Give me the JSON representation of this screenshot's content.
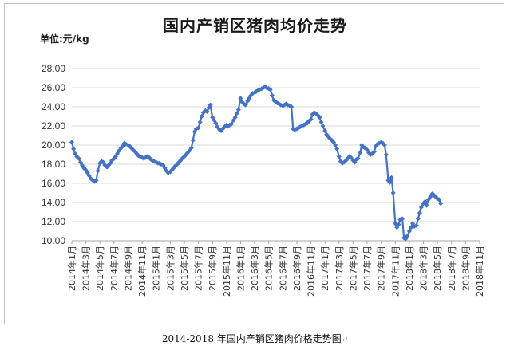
{
  "title": "国内产销区猪肉均价走势",
  "unit_label": "单位:元/kg",
  "caption": "2014-2018 年国内产销区猪肉价格走势图",
  "caption_mark": "↵",
  "chart_data": {
    "type": "line",
    "title": "国内产销区猪肉均价走势",
    "ylabel": "单位:元/kg",
    "xlabel": "",
    "ylim": [
      10,
      28
    ],
    "y_ticks": [
      "10.00",
      "12.00",
      "14.00",
      "16.00",
      "18.00",
      "20.00",
      "22.00",
      "24.00",
      "26.00",
      "28.00"
    ],
    "grid": "horizontal",
    "legend": "none",
    "x_start": "2014-01",
    "x_end": "2018-11",
    "x_tick_labels": [
      "2014年1月",
      "2014年3月",
      "2014年5月",
      "2014年7月",
      "2014年9月",
      "2014年11月",
      "2015年1月",
      "2015年3月",
      "2015年5月",
      "2015年7月",
      "2015年9月",
      "2015年11月",
      "2016年1月",
      "2016年3月",
      "2016年5月",
      "2016年7月",
      "2016年9月",
      "2016年11月",
      "2017年1月",
      "2017年3月",
      "2017年5月",
      "2017年7月",
      "2017年9月",
      "2017年11月",
      "2018年1月",
      "2018年3月",
      "2018年5月",
      "2018年7月",
      "2018年9月",
      "2018年11月"
    ],
    "series": [
      {
        "color": "#4472c4",
        "marker": "diamond",
        "points": [
          [
            "2014-01-01",
            20.3
          ],
          [
            "2014-01-08",
            19.6
          ],
          [
            "2014-01-15",
            19.1
          ],
          [
            "2014-01-22",
            18.8
          ],
          [
            "2014-02-01",
            18.6
          ],
          [
            "2014-02-08",
            18.2
          ],
          [
            "2014-02-15",
            17.9
          ],
          [
            "2014-02-22",
            17.6
          ],
          [
            "2014-03-01",
            17.4
          ],
          [
            "2014-03-08",
            17.1
          ],
          [
            "2014-03-15",
            16.8
          ],
          [
            "2014-03-22",
            16.5
          ],
          [
            "2014-04-01",
            16.3
          ],
          [
            "2014-04-08",
            16.2
          ],
          [
            "2014-04-15",
            16.3
          ],
          [
            "2014-04-22",
            17.3
          ],
          [
            "2014-05-01",
            18.1
          ],
          [
            "2014-05-08",
            18.3
          ],
          [
            "2014-05-15",
            18.2
          ],
          [
            "2014-05-22",
            17.9
          ],
          [
            "2014-06-01",
            17.7
          ],
          [
            "2014-06-08",
            17.9
          ],
          [
            "2014-06-15",
            18.1
          ],
          [
            "2014-06-22",
            18.4
          ],
          [
            "2014-07-01",
            18.6
          ],
          [
            "2014-07-08",
            18.8
          ],
          [
            "2014-07-15",
            19.1
          ],
          [
            "2014-07-22",
            19.4
          ],
          [
            "2014-08-01",
            19.7
          ],
          [
            "2014-08-08",
            19.9
          ],
          [
            "2014-08-15",
            20.2
          ],
          [
            "2014-08-22",
            20.1
          ],
          [
            "2014-09-01",
            20.0
          ],
          [
            "2014-09-08",
            19.9
          ],
          [
            "2014-09-15",
            19.7
          ],
          [
            "2014-09-22",
            19.5
          ],
          [
            "2014-10-01",
            19.3
          ],
          [
            "2014-10-08",
            19.1
          ],
          [
            "2014-10-15",
            18.9
          ],
          [
            "2014-10-22",
            18.8
          ],
          [
            "2014-11-01",
            18.7
          ],
          [
            "2014-11-08",
            18.6
          ],
          [
            "2014-11-15",
            18.7
          ],
          [
            "2014-11-22",
            18.8
          ],
          [
            "2014-12-01",
            18.7
          ],
          [
            "2014-12-08",
            18.5
          ],
          [
            "2014-12-15",
            18.4
          ],
          [
            "2014-12-22",
            18.3
          ],
          [
            "2015-01-01",
            18.2
          ],
          [
            "2015-01-08",
            18.1
          ],
          [
            "2015-01-15",
            18.1
          ],
          [
            "2015-01-22",
            18.0
          ],
          [
            "2015-02-01",
            17.9
          ],
          [
            "2015-02-08",
            17.6
          ],
          [
            "2015-02-15",
            17.3
          ],
          [
            "2015-02-22",
            17.1
          ],
          [
            "2015-03-01",
            17.2
          ],
          [
            "2015-03-08",
            17.4
          ],
          [
            "2015-03-15",
            17.6
          ],
          [
            "2015-03-22",
            17.8
          ],
          [
            "2015-04-01",
            18.0
          ],
          [
            "2015-04-08",
            18.2
          ],
          [
            "2015-04-15",
            18.4
          ],
          [
            "2015-04-22",
            18.6
          ],
          [
            "2015-05-01",
            18.8
          ],
          [
            "2015-05-08",
            19.0
          ],
          [
            "2015-05-15",
            19.2
          ],
          [
            "2015-05-22",
            19.4
          ],
          [
            "2015-06-01",
            19.7
          ],
          [
            "2015-06-08",
            20.5
          ],
          [
            "2015-06-15",
            21.4
          ],
          [
            "2015-06-22",
            21.7
          ],
          [
            "2015-07-01",
            21.8
          ],
          [
            "2015-07-08",
            22.4
          ],
          [
            "2015-07-15",
            23.0
          ],
          [
            "2015-07-22",
            23.4
          ],
          [
            "2015-08-01",
            23.6
          ],
          [
            "2015-08-08",
            23.5
          ],
          [
            "2015-08-15",
            23.9
          ],
          [
            "2015-08-22",
            24.2
          ],
          [
            "2015-09-01",
            22.9
          ],
          [
            "2015-09-08",
            22.6
          ],
          [
            "2015-09-15",
            22.3
          ],
          [
            "2015-09-22",
            21.9
          ],
          [
            "2015-10-01",
            21.6
          ],
          [
            "2015-10-08",
            21.5
          ],
          [
            "2015-10-15",
            21.7
          ],
          [
            "2015-10-22",
            21.9
          ],
          [
            "2015-11-01",
            22.1
          ],
          [
            "2015-11-08",
            22.0
          ],
          [
            "2015-11-15",
            22.1
          ],
          [
            "2015-11-22",
            22.2
          ],
          [
            "2015-12-01",
            22.6
          ],
          [
            "2015-12-08",
            22.9
          ],
          [
            "2015-12-15",
            23.3
          ],
          [
            "2015-12-22",
            23.7
          ],
          [
            "2016-01-01",
            24.9
          ],
          [
            "2016-01-08",
            24.5
          ],
          [
            "2016-01-15",
            24.3
          ],
          [
            "2016-01-22",
            24.2
          ],
          [
            "2016-02-01",
            24.6
          ],
          [
            "2016-02-08",
            24.9
          ],
          [
            "2016-02-15",
            25.2
          ],
          [
            "2016-02-22",
            25.4
          ],
          [
            "2016-03-01",
            25.5
          ],
          [
            "2016-03-08",
            25.6
          ],
          [
            "2016-03-15",
            25.7
          ],
          [
            "2016-03-22",
            25.8
          ],
          [
            "2016-04-01",
            25.9
          ],
          [
            "2016-04-08",
            26.0
          ],
          [
            "2016-04-15",
            26.1
          ],
          [
            "2016-04-22",
            26.0
          ],
          [
            "2016-05-01",
            25.9
          ],
          [
            "2016-05-08",
            25.8
          ],
          [
            "2016-05-15",
            25.2
          ],
          [
            "2016-05-22",
            24.7
          ],
          [
            "2016-06-01",
            24.5
          ],
          [
            "2016-06-08",
            24.4
          ],
          [
            "2016-06-15",
            24.3
          ],
          [
            "2016-06-22",
            24.2
          ],
          [
            "2016-07-01",
            24.1
          ],
          [
            "2016-07-08",
            24.2
          ],
          [
            "2016-07-15",
            24.3
          ],
          [
            "2016-07-22",
            24.2
          ],
          [
            "2016-08-01",
            24.1
          ],
          [
            "2016-08-08",
            24.0
          ],
          [
            "2016-08-15",
            21.7
          ],
          [
            "2016-08-22",
            21.6
          ],
          [
            "2016-09-01",
            21.7
          ],
          [
            "2016-09-08",
            21.8
          ],
          [
            "2016-09-15",
            21.9
          ],
          [
            "2016-09-22",
            22.0
          ],
          [
            "2016-10-01",
            22.1
          ],
          [
            "2016-10-08",
            22.2
          ],
          [
            "2016-10-15",
            22.3
          ],
          [
            "2016-10-22",
            22.5
          ],
          [
            "2016-11-01",
            22.7
          ],
          [
            "2016-11-08",
            23.2
          ],
          [
            "2016-11-15",
            23.4
          ],
          [
            "2016-11-22",
            23.3
          ],
          [
            "2016-12-01",
            23.1
          ],
          [
            "2016-12-08",
            22.9
          ],
          [
            "2016-12-15",
            22.4
          ],
          [
            "2016-12-22",
            22.0
          ],
          [
            "2017-01-01",
            21.5
          ],
          [
            "2017-01-08",
            21.1
          ],
          [
            "2017-01-15",
            20.9
          ],
          [
            "2017-01-22",
            20.7
          ],
          [
            "2017-02-01",
            20.5
          ],
          [
            "2017-02-08",
            20.3
          ],
          [
            "2017-02-15",
            20.0
          ],
          [
            "2017-02-22",
            19.6
          ],
          [
            "2017-03-01",
            18.8
          ],
          [
            "2017-03-08",
            18.3
          ],
          [
            "2017-03-15",
            18.1
          ],
          [
            "2017-03-22",
            18.2
          ],
          [
            "2017-04-01",
            18.4
          ],
          [
            "2017-04-08",
            18.6
          ],
          [
            "2017-04-15",
            18.8
          ],
          [
            "2017-04-22",
            18.7
          ],
          [
            "2017-05-01",
            18.4
          ],
          [
            "2017-05-08",
            18.2
          ],
          [
            "2017-05-15",
            18.5
          ],
          [
            "2017-05-22",
            18.6
          ],
          [
            "2017-06-01",
            19.2
          ],
          [
            "2017-06-08",
            20.0
          ],
          [
            "2017-06-15",
            19.8
          ],
          [
            "2017-06-22",
            19.7
          ],
          [
            "2017-07-01",
            19.5
          ],
          [
            "2017-07-08",
            19.2
          ],
          [
            "2017-07-15",
            19.0
          ],
          [
            "2017-07-22",
            19.1
          ],
          [
            "2017-08-01",
            19.3
          ],
          [
            "2017-08-08",
            19.9
          ],
          [
            "2017-08-15",
            20.1
          ],
          [
            "2017-08-22",
            20.2
          ],
          [
            "2017-09-01",
            20.3
          ],
          [
            "2017-09-08",
            20.2
          ],
          [
            "2017-09-15",
            20.0
          ],
          [
            "2017-09-22",
            19.0
          ],
          [
            "2017-10-01",
            16.3
          ],
          [
            "2017-10-08",
            16.1
          ],
          [
            "2017-10-15",
            16.6
          ],
          [
            "2017-10-22",
            15.0
          ],
          [
            "2017-11-01",
            11.8
          ],
          [
            "2017-11-08",
            11.4
          ],
          [
            "2017-11-15",
            11.7
          ],
          [
            "2017-11-22",
            12.2
          ],
          [
            "2017-12-01",
            12.3
          ],
          [
            "2017-12-08",
            10.3
          ],
          [
            "2017-12-15",
            10.2
          ],
          [
            "2017-12-22",
            10.5
          ],
          [
            "2018-01-01",
            11.0
          ],
          [
            "2018-01-08",
            11.4
          ],
          [
            "2018-01-15",
            11.8
          ],
          [
            "2018-01-22",
            11.5
          ],
          [
            "2018-02-01",
            11.6
          ],
          [
            "2018-02-08",
            12.3
          ],
          [
            "2018-02-15",
            12.9
          ],
          [
            "2018-02-22",
            13.5
          ],
          [
            "2018-03-01",
            13.9
          ],
          [
            "2018-03-08",
            14.1
          ],
          [
            "2018-03-15",
            13.7
          ],
          [
            "2018-03-22",
            14.3
          ],
          [
            "2018-04-01",
            14.6
          ],
          [
            "2018-04-08",
            14.9
          ],
          [
            "2018-04-15",
            14.8
          ],
          [
            "2018-04-22",
            14.6
          ],
          [
            "2018-05-01",
            14.4
          ],
          [
            "2018-05-08",
            14.3
          ],
          [
            "2018-05-15",
            13.9
          ]
        ]
      }
    ]
  }
}
